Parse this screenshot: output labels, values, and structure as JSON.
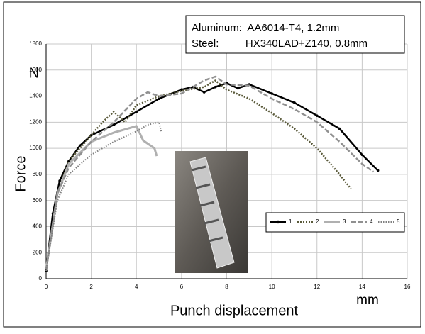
{
  "chart_data": {
    "type": "line",
    "xlabel": "Punch displacement",
    "ylabel": "Force",
    "x_unit_label": "mm",
    "y_unit_label": "N",
    "annotation": [
      "Aluminum:  AA6014-T4, 1.2mm",
      "Steel:         HX340LAD+Z140, 0.8mm"
    ],
    "xlim": [
      0,
      16
    ],
    "xticks": [
      0,
      2,
      4,
      6,
      8,
      10,
      12,
      14,
      16
    ],
    "ylim": [
      0,
      1800
    ],
    "yticks": [
      0,
      200,
      400,
      600,
      800,
      1000,
      1200,
      1400,
      1600,
      1800
    ],
    "grid": true,
    "legend": "right",
    "series": [
      {
        "name": "1",
        "color": "#000000",
        "dash": "solid",
        "width": 2.5,
        "marker": true,
        "x": [
          0,
          0.3,
          0.6,
          1,
          1.5,
          2,
          3,
          4,
          5,
          6,
          6.5,
          7,
          7.5,
          8,
          8.5,
          9,
          10,
          11,
          12,
          13,
          14,
          14.7
        ],
        "values": [
          60,
          500,
          750,
          900,
          1020,
          1100,
          1180,
          1280,
          1380,
          1450,
          1470,
          1430,
          1470,
          1500,
          1460,
          1490,
          1420,
          1350,
          1250,
          1150,
          950,
          830
        ]
      },
      {
        "name": "2",
        "color": "#5a5a3a",
        "dash": "2 2",
        "width": 2.5,
        "marker": false,
        "x": [
          0,
          0.5,
          1,
          2,
          2.5,
          3,
          3.5,
          4,
          5,
          6,
          7,
          7.5,
          8,
          9,
          10,
          11,
          12,
          13,
          13.5
        ],
        "values": [
          80,
          650,
          900,
          1100,
          1200,
          1280,
          1200,
          1330,
          1400,
          1440,
          1470,
          1520,
          1450,
          1380,
          1270,
          1150,
          1000,
          800,
          690
        ]
      },
      {
        "name": "3",
        "color": "#b0b0b0",
        "dash": "solid",
        "width": 3,
        "marker": false,
        "x": [
          0,
          0.5,
          1,
          2,
          3,
          4,
          4.3,
          4.8,
          4.9
        ],
        "values": [
          70,
          650,
          880,
          1050,
          1120,
          1170,
          1060,
          1000,
          940
        ]
      },
      {
        "name": "4",
        "color": "#909090",
        "dash": "7 3",
        "width": 2.5,
        "marker": false,
        "x": [
          0,
          0.5,
          1,
          2,
          3,
          4,
          4.5,
          5,
          6,
          7,
          7.5,
          8,
          9,
          10,
          11,
          12,
          13,
          14,
          14.5
        ],
        "values": [
          70,
          650,
          850,
          1050,
          1200,
          1380,
          1430,
          1400,
          1420,
          1520,
          1550,
          1490,
          1480,
          1380,
          1300,
          1200,
          1050,
          880,
          820
        ]
      },
      {
        "name": "5",
        "color": "#808080",
        "dash": "1.5 2",
        "width": 2,
        "marker": false,
        "x": [
          0,
          0.5,
          1,
          2,
          3,
          4,
          4.5,
          5,
          5.1
        ],
        "values": [
          60,
          600,
          800,
          950,
          1050,
          1130,
          1180,
          1200,
          1130
        ]
      }
    ]
  }
}
